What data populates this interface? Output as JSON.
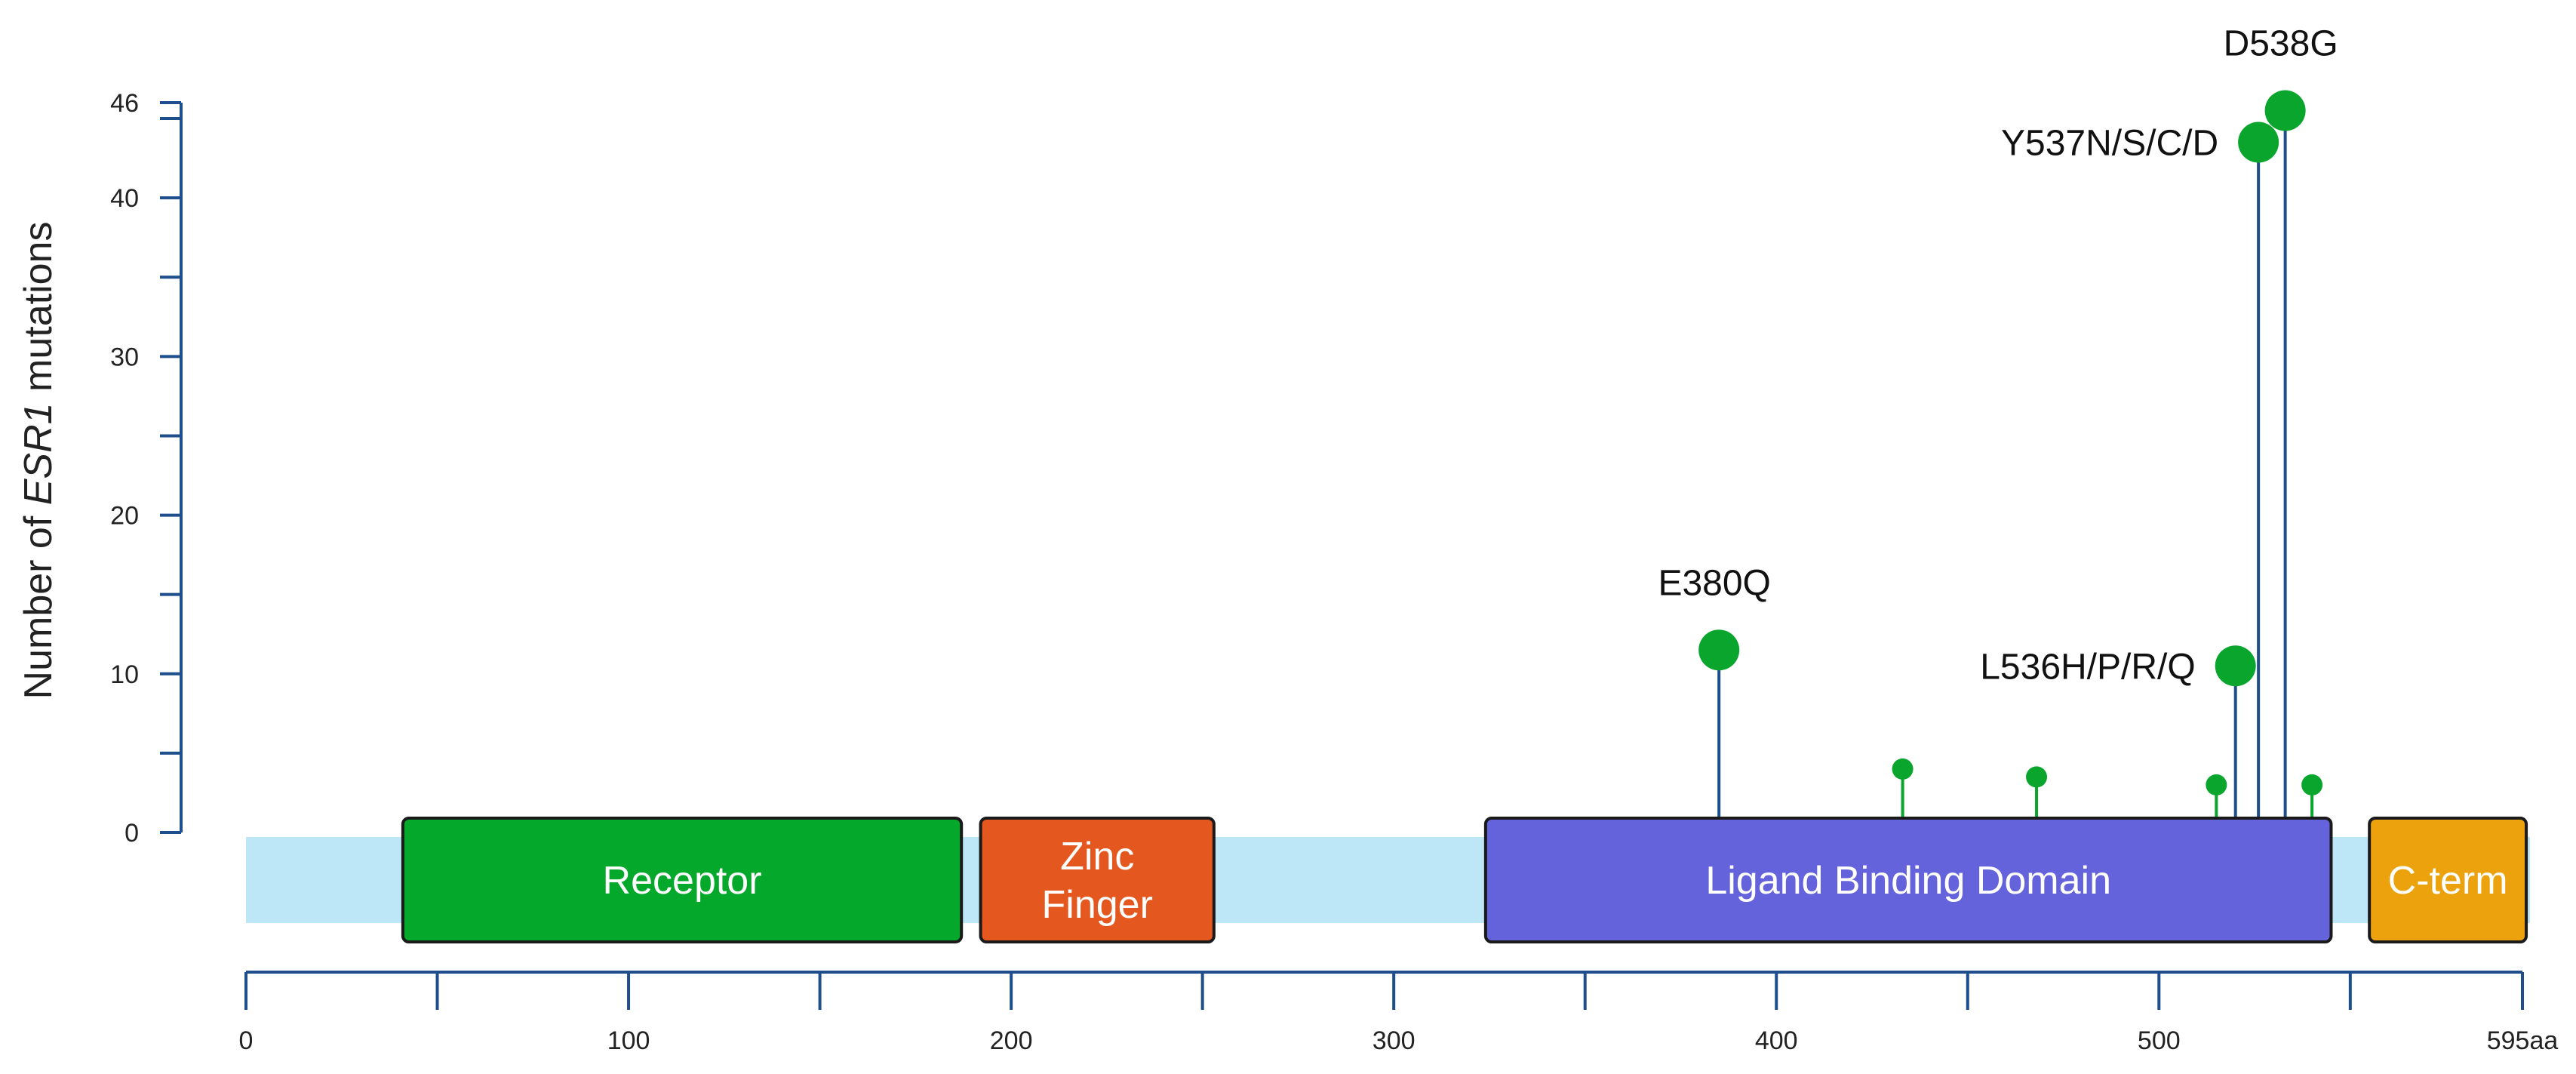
{
  "chart_data": {
    "type": "lollipop",
    "ylabel_prefix": "Number of ",
    "ylabel_gene": "ESR1",
    "ylabel_suffix": " mutations",
    "y_ticks": [
      0,
      10,
      20,
      30,
      40,
      46
    ],
    "y_minor_ticks": [
      5,
      15,
      25,
      35,
      45
    ],
    "ylim": [
      0,
      46
    ],
    "x_range": [
      0,
      595
    ],
    "x_ticks": [
      {
        "value": 0,
        "label": "0"
      },
      {
        "value": 100,
        "label": "100"
      },
      {
        "value": 200,
        "label": "200"
      },
      {
        "value": 300,
        "label": "300"
      },
      {
        "value": 400,
        "label": "400"
      },
      {
        "value": 500,
        "label": "500"
      },
      {
        "value": 595,
        "label": "595aa"
      }
    ],
    "x_minor_ticks": [
      50,
      150,
      250,
      350,
      450,
      550
    ],
    "protein_colors": {
      "backbone": "#bde6f6",
      "lollipop": "#0aa52c",
      "stem_major": "#1f4e8c",
      "stem_minor": "#0aa52c",
      "axis": "#1f4e8c"
    },
    "domains": [
      {
        "name": "Receptor",
        "lines": [
          "Receptor"
        ],
        "start": 41,
        "end": 187,
        "color": "#04a82a"
      },
      {
        "name": "Zinc Finger",
        "lines": [
          "Zinc",
          "Finger"
        ],
        "start": 192,
        "end": 253,
        "color": "#e4571f"
      },
      {
        "name": "Ligand Binding Domain",
        "lines": [
          "Ligand Binding Domain"
        ],
        "start": 324,
        "end": 545,
        "color": "#6563dc"
      },
      {
        "name": "C-term",
        "lines": [
          "C-term"
        ],
        "start": 555,
        "end": 596,
        "color": "#eba20c"
      }
    ],
    "mutations": [
      {
        "position": 385,
        "count": 11.5,
        "label": "E380Q",
        "size": "large",
        "label_side": "top"
      },
      {
        "position": 433,
        "count": 4,
        "label": "",
        "size": "small"
      },
      {
        "position": 468,
        "count": 3.5,
        "label": "",
        "size": "small"
      },
      {
        "position": 515,
        "count": 3,
        "label": "",
        "size": "small"
      },
      {
        "position": 520,
        "count": 10.5,
        "label": "L536H/P/R/Q",
        "size": "large",
        "label_side": "left"
      },
      {
        "position": 526,
        "count": 43.5,
        "label": "Y537N/S/C/D",
        "size": "large",
        "label_side": "left"
      },
      {
        "position": 533,
        "count": 45.5,
        "label": "D538G",
        "size": "large",
        "label_side": "top"
      },
      {
        "position": 540,
        "count": 3,
        "label": "",
        "size": "small"
      }
    ]
  }
}
